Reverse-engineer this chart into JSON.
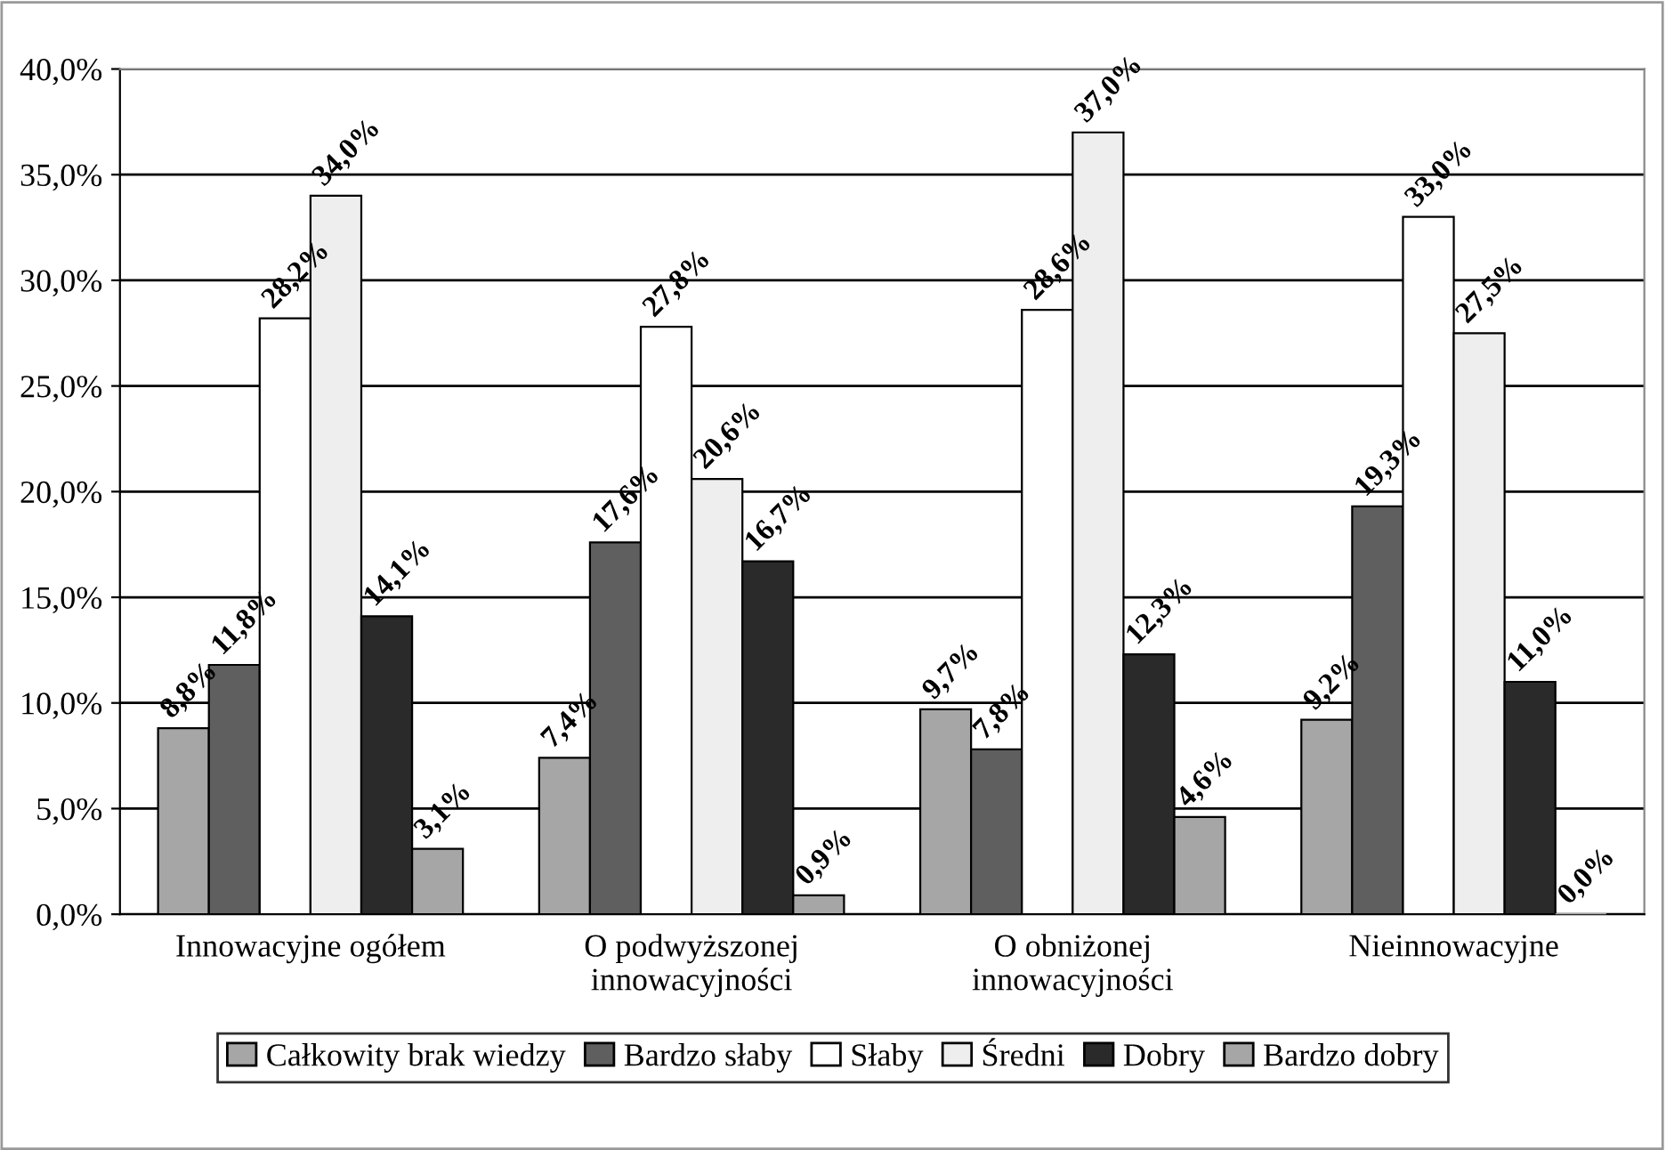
{
  "chart_data": {
    "type": "bar",
    "categories": [
      "Innowacyjne ogółem",
      "O podwyższonej\ninnowacyjności",
      "O obniżonej\ninnowacyjności",
      "Nieinnowacyjne"
    ],
    "series": [
      {
        "name": "Całkowity brak wiedzy",
        "color": "#a6a6a6",
        "values": [
          8.8,
          7.4,
          9.7,
          9.2
        ],
        "value_labels": [
          "8,8%",
          "7,4%",
          "9,7%",
          "9,2%"
        ]
      },
      {
        "name": "Bardzo słaby",
        "color": "#5f5f5f",
        "values": [
          11.8,
          17.6,
          7.8,
          19.3
        ],
        "value_labels": [
          "11,8%",
          "17,6%",
          "7,8%",
          "19,3%"
        ]
      },
      {
        "name": "Słaby",
        "color": "#ffffff",
        "values": [
          28.2,
          27.8,
          28.6,
          33.0
        ],
        "value_labels": [
          "28,2%",
          "27,8%",
          "28,6%",
          "33,0%"
        ]
      },
      {
        "name": "Średni",
        "color": "#eeeeee",
        "values": [
          34.0,
          20.6,
          37.0,
          27.5
        ],
        "value_labels": [
          "34,0%",
          "20,6%",
          "37,0%",
          "27,5%"
        ]
      },
      {
        "name": "Dobry",
        "color": "#2a2a2a",
        "values": [
          14.1,
          16.7,
          12.3,
          11.0
        ],
        "value_labels": [
          "14,1%",
          "16,7%",
          "12,3%",
          "11,0%"
        ]
      },
      {
        "name": "Bardzo dobry",
        "color": "#a6a6a6",
        "values": [
          3.1,
          0.9,
          4.6,
          0.0
        ],
        "value_labels": [
          "3,1%",
          "0,9%",
          "4,6%",
          "0,0%"
        ]
      }
    ],
    "ylim": [
      0,
      40
    ],
    "yticks": [
      {
        "value": 0,
        "label": "0,0%"
      },
      {
        "value": 5,
        "label": "5,0%"
      },
      {
        "value": 10,
        "label": "10,0%"
      },
      {
        "value": 15,
        "label": "15,0%"
      },
      {
        "value": 20,
        "label": "20,0%"
      },
      {
        "value": 25,
        "label": "25,0%"
      },
      {
        "value": 30,
        "label": "30,0%"
      },
      {
        "value": 35,
        "label": "35,0%"
      },
      {
        "value": 40,
        "label": "40,0%"
      }
    ],
    "grid": "y",
    "legend": "bottom"
  }
}
